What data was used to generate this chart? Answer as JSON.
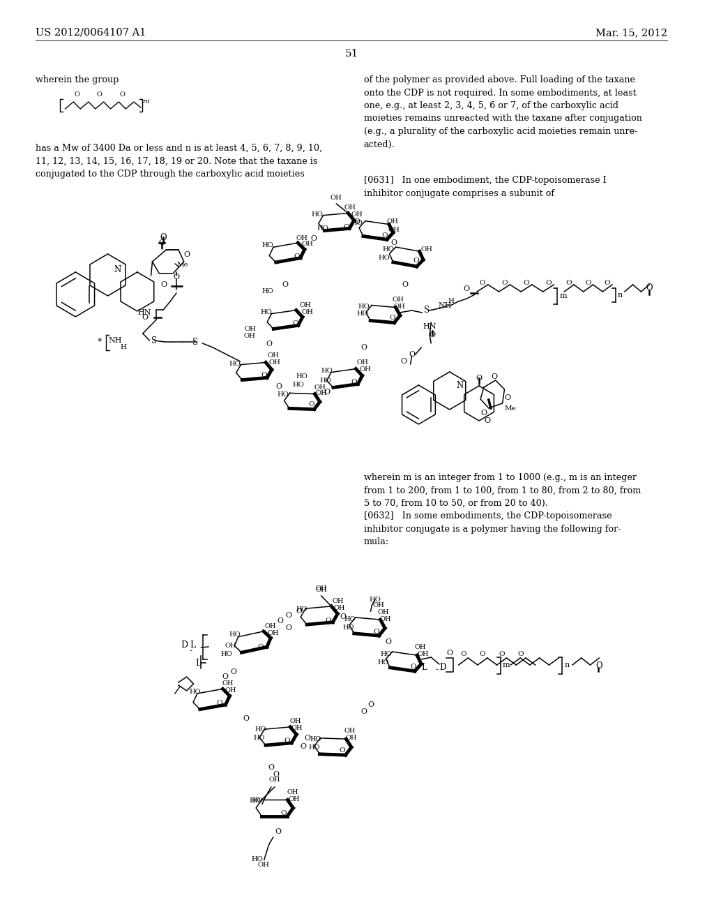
{
  "background_color": "#ffffff",
  "text_color": "#000000",
  "header_left": "US 2012/0064107 A1",
  "header_right": "Mar. 15, 2012",
  "page_number": "51",
  "body_fontsize": 9.2,
  "header_fontsize": 10.5,
  "left_text_1": "wherein the group",
  "left_text_2": "has a Mw of 3400 Da or less and n is at least 4, 5, 6, 7, 8, 9, 10,\n11, 12, 13, 14, 15, 16, 17, 18, 19 or 20. Note that the taxane is\nconjugated to the CDP through the carboxylic acid moieties",
  "right_text_1": "of the polymer as provided above. Full loading of the taxane\nonto the CDP is not required. In some embodiments, at least\none, e.g., at least 2, 3, 4, 5, 6 or 7, of the carboxylic acid\nmoieties remains unreacted with the taxane after conjugation\n(e.g., a plurality of the carboxylic acid moieties remain unre-\nacted).",
  "right_text_2": "[0631]   In one embodiment, the CDP-topoisomerase I\ninhibitor conjugate comprises a subunit of",
  "right_text_3": "wherein m is an integer from 1 to 1000 (e.g., m is an integer\nfrom 1 to 200, from 1 to 100, from 1 to 80, from 2 to 80, from\n5 to 70, from 10 to 50, or from 20 to 40).\n[0632]   In some embodiments, the CDP-topoisomerase\ninhibitor conjugate is a polymer having the following for-\nmula:"
}
